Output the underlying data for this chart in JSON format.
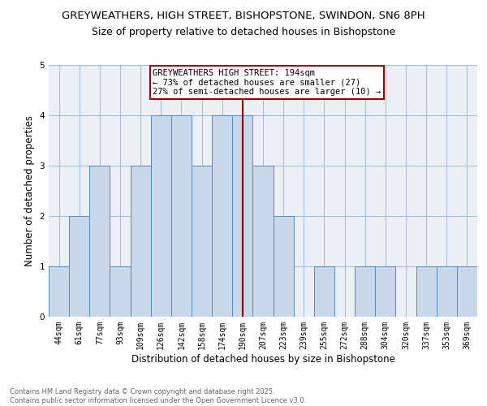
{
  "title1": "GREYWEATHERS, HIGH STREET, BISHOPSTONE, SWINDON, SN6 8PH",
  "title2": "Size of property relative to detached houses in Bishopstone",
  "xlabel": "Distribution of detached houses by size in Bishopstone",
  "ylabel": "Number of detached properties",
  "categories": [
    "44sqm",
    "61sqm",
    "77sqm",
    "93sqm",
    "109sqm",
    "126sqm",
    "142sqm",
    "158sqm",
    "174sqm",
    "190sqm",
    "207sqm",
    "223sqm",
    "239sqm",
    "255sqm",
    "272sqm",
    "288sqm",
    "304sqm",
    "320sqm",
    "337sqm",
    "353sqm",
    "369sqm"
  ],
  "values": [
    1,
    2,
    3,
    1,
    3,
    4,
    4,
    3,
    4,
    4,
    3,
    2,
    0,
    1,
    0,
    1,
    1,
    0,
    1,
    1,
    1
  ],
  "bar_color": "#c8d8ea",
  "bar_edge_color": "#5a8ab8",
  "highlight_index": 9,
  "highlight_line_color": "#990000",
  "annotation_text": "GREYWEATHERS HIGH STREET: 194sqm\n← 73% of detached houses are smaller (27)\n27% of semi-detached houses are larger (10) →",
  "annotation_box_color": "#ffffff",
  "annotation_border_color": "#990000",
  "ylim": [
    0,
    5
  ],
  "yticks": [
    0,
    1,
    2,
    3,
    4,
    5
  ],
  "grid_color": "#aabfd4",
  "bg_color": "#eaf0f6",
  "footer_text": "Contains HM Land Registry data © Crown copyright and database right 2025.\nContains public sector information licensed under the Open Government Licence v3.0.",
  "title1_fontsize": 9.5,
  "title2_fontsize": 9,
  "xlabel_fontsize": 8.5,
  "ylabel_fontsize": 8.5,
  "tick_fontsize": 7,
  "annotation_fontsize": 7.5,
  "footer_fontsize": 6
}
